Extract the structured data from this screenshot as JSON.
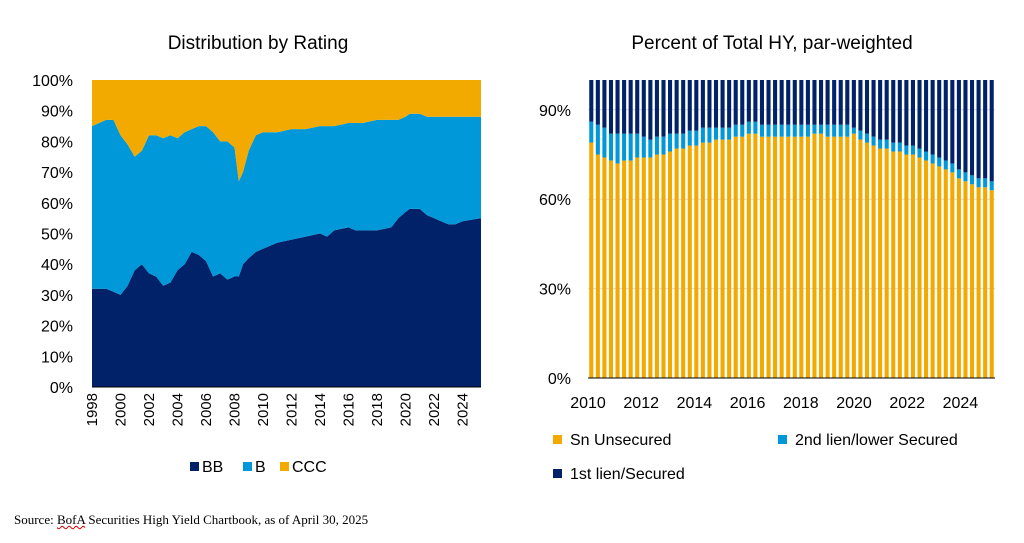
{
  "chart_data": [
    {
      "type": "area",
      "stacked": true,
      "title": "Distribution by Rating",
      "xlabel": "",
      "ylabel": "",
      "xlim": [
        1998,
        2025.3
      ],
      "ylim": [
        0,
        100
      ],
      "x_ticks": [
        "1998",
        "2000",
        "2002",
        "2004",
        "2006",
        "2008",
        "2010",
        "2012",
        "2014",
        "2016",
        "2018",
        "2020",
        "2022",
        "2024"
      ],
      "y_ticks": [
        "0%",
        "10%",
        "20%",
        "30%",
        "40%",
        "50%",
        "60%",
        "70%",
        "80%",
        "90%",
        "100%"
      ],
      "x": [
        1998,
        1999,
        1999.5,
        2000,
        2000.5,
        2001,
        2001.5,
        2002,
        2002.5,
        2003,
        2003.5,
        2004,
        2004.5,
        2005,
        2005.5,
        2006,
        2006.5,
        2007,
        2007.5,
        2008,
        2008.3,
        2008.6,
        2009,
        2009.5,
        2010,
        2010.5,
        2011,
        2012,
        2013,
        2014,
        2014.5,
        2015,
        2016,
        2016.5,
        2017,
        2018,
        2019,
        2019.5,
        2020,
        2020.3,
        2021,
        2021.5,
        2022,
        2022.5,
        2023,
        2023.5,
        2024,
        2025.3
      ],
      "series": [
        {
          "name": "BB",
          "color": "#012169",
          "values": [
            32,
            32,
            31,
            30,
            33,
            38,
            40,
            37,
            36,
            33,
            34,
            38,
            40,
            44,
            43,
            41,
            36,
            37,
            35,
            36,
            36,
            40,
            42,
            44,
            45,
            46,
            47,
            48,
            49,
            50,
            49,
            51,
            52,
            51,
            51,
            51,
            52,
            55,
            57,
            58,
            58,
            56,
            55,
            54,
            53,
            53,
            54,
            55
          ]
        },
        {
          "name": "B",
          "color": "#0098d8",
          "values": [
            53,
            55,
            56,
            52,
            46,
            37,
            37,
            45,
            46,
            48,
            48,
            43,
            43,
            40,
            42,
            44,
            47,
            43,
            45,
            42,
            31,
            30,
            35,
            38,
            38,
            37,
            36,
            36,
            35,
            35,
            36,
            34,
            34,
            35,
            35,
            36,
            35,
            32,
            31,
            31,
            31,
            32,
            33,
            34,
            35,
            35,
            34,
            33
          ]
        },
        {
          "name": "CCC",
          "color": "#f2a900",
          "values": [
            15,
            13,
            13,
            18,
            21,
            25,
            23,
            18,
            18,
            19,
            18,
            19,
            17,
            16,
            15,
            15,
            17,
            20,
            20,
            22,
            33,
            30,
            23,
            18,
            17,
            17,
            17,
            16,
            16,
            15,
            15,
            15,
            14,
            14,
            14,
            13,
            13,
            13,
            12,
            11,
            11,
            12,
            12,
            12,
            12,
            12,
            12,
            12
          ]
        }
      ],
      "legend": "bottom"
    },
    {
      "type": "bar",
      "stacked": true,
      "title": "Percent of Total HY, par-weighted",
      "xlabel": "",
      "ylabel": "",
      "xlim": [
        2010,
        2025.3
      ],
      "ylim": [
        0,
        100
      ],
      "x_ticks": [
        "2010",
        "2012",
        "2014",
        "2016",
        "2018",
        "2020",
        "2022",
        "2024"
      ],
      "y_ticks": [
        "0%",
        "30%",
        "60%",
        "90%"
      ],
      "x": [
        2010,
        2010.25,
        2010.5,
        2010.75,
        2011,
        2011.25,
        2011.5,
        2011.75,
        2012,
        2012.25,
        2012.5,
        2012.75,
        2013,
        2013.25,
        2013.5,
        2013.75,
        2014,
        2014.25,
        2014.5,
        2014.75,
        2015,
        2015.25,
        2015.5,
        2015.75,
        2016,
        2016.25,
        2016.5,
        2016.75,
        2017,
        2017.25,
        2017.5,
        2017.75,
        2018,
        2018.25,
        2018.5,
        2018.75,
        2019,
        2019.25,
        2019.5,
        2019.75,
        2020,
        2020.25,
        2020.5,
        2020.75,
        2021,
        2021.25,
        2021.5,
        2021.75,
        2022,
        2022.25,
        2022.5,
        2022.75,
        2023,
        2023.25,
        2023.5,
        2023.75,
        2024,
        2024.25,
        2024.5,
        2024.75,
        2025,
        2025.25
      ],
      "series": [
        {
          "name": "Sn Unsecured",
          "color": "#f2a900",
          "values": [
            79,
            75,
            74,
            73,
            72,
            73,
            73,
            74,
            74,
            74,
            75,
            75,
            76,
            77,
            77,
            78,
            78,
            79,
            79,
            80,
            80,
            80,
            81,
            81,
            82,
            82,
            81,
            81,
            81,
            81,
            81,
            81,
            81,
            81,
            82,
            82,
            81,
            81,
            81,
            81,
            82,
            80,
            79,
            78,
            77,
            77,
            76,
            76,
            75,
            75,
            74,
            73,
            72,
            71,
            70,
            69,
            67,
            66,
            65,
            64,
            64,
            63
          ]
        },
        {
          "name": "2nd lien/lower Secured",
          "color": "#0098d8",
          "values": [
            7,
            10,
            10,
            9,
            10,
            9,
            9,
            8,
            7,
            6,
            6,
            6,
            6,
            5,
            5,
            5,
            5,
            5,
            5,
            4,
            4,
            4,
            4,
            4,
            4,
            4,
            4,
            4,
            4,
            4,
            4,
            4,
            4,
            4,
            3,
            3,
            4,
            4,
            4,
            4,
            2,
            3,
            3,
            3,
            3,
            3,
            3,
            3,
            3,
            3,
            3,
            3,
            3,
            3,
            3,
            3,
            3,
            3,
            3,
            3,
            3,
            3
          ]
        },
        {
          "name": "1st lien/Secured",
          "color": "#012169",
          "values": [
            14,
            15,
            16,
            18,
            18,
            18,
            18,
            18,
            19,
            20,
            19,
            19,
            18,
            18,
            18,
            17,
            17,
            16,
            16,
            16,
            16,
            16,
            15,
            15,
            14,
            14,
            15,
            15,
            15,
            15,
            15,
            15,
            15,
            15,
            15,
            15,
            15,
            15,
            15,
            15,
            16,
            17,
            18,
            19,
            20,
            20,
            21,
            21,
            22,
            22,
            23,
            24,
            25,
            26,
            27,
            28,
            30,
            31,
            32,
            33,
            33,
            34
          ]
        }
      ],
      "legend": "bottom"
    }
  ],
  "source": {
    "prefix": "Source: ",
    "squiggle": "BofA",
    "rest": " Securities High Yield Chartbook, as of April 30, 2025"
  }
}
